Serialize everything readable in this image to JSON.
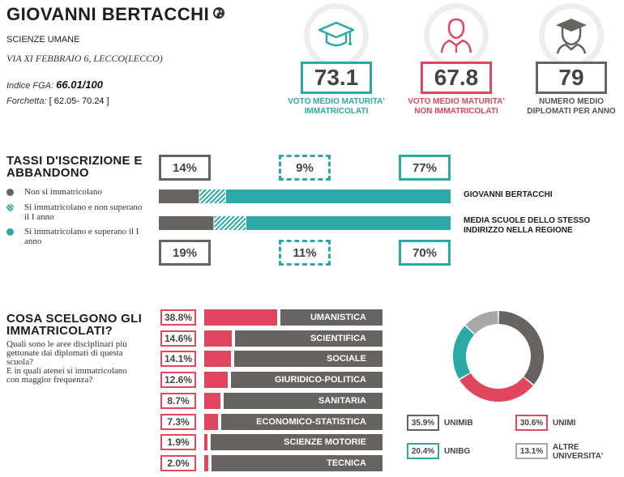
{
  "header": {
    "school_name": "GIOVANNI BERTACCHI",
    "globe_icon": "globe-icon",
    "school_type": "SCIENZE UMANE",
    "address": "VIA XI FEBBRAIO 6, LECCO(LECCO)",
    "fga_label": "Indice FGA:",
    "fga_value": "66.01/100",
    "range_label": "Forchetta:",
    "range_value": "[ 62.05- 70.24 ]"
  },
  "kpis": [
    {
      "value": "73.1",
      "label_line1": "VOTO MEDIO MATURITA'",
      "label_line2": "IMMATRICOLATI",
      "color": "#2ca8a6",
      "icon": "graduation-cap-icon"
    },
    {
      "value": "67.8",
      "label_line1": "VOTO MEDIO MATURITA'",
      "label_line2": "NON IMMATRICOLATI",
      "color": "#e0475e",
      "icon": "person-icon"
    },
    {
      "value": "79",
      "label_line1": "NUMERO MEDIO",
      "label_line2": "DIPLOMATI PER ANNO",
      "color": "#666360",
      "icon": "graduate-person-icon"
    }
  ],
  "enrollment": {
    "title_line1": "TASSI D'ISCRIZIONE E",
    "title_line2": "ABBANDONO",
    "legend": [
      {
        "label": "Non si immatricolano",
        "color": "#666360"
      },
      {
        "label": "Si immatricolano e non superano il I anno",
        "color": "#2ca8a6"
      },
      {
        "label": "Si immatricolano e superano il I anno",
        "color": "#2ca8a6"
      }
    ],
    "top_values": [
      "14%",
      "9%",
      "77%"
    ],
    "bottom_values": [
      "19%",
      "11%",
      "70%"
    ],
    "bar1_label": "GIOVANNI BERTACCHI",
    "bar2_label_line1": "MEDIA SCUOLE DELLO STESSO",
    "bar2_label_line2": "INDIRIZZO NELLA REGIONE"
  },
  "choices": {
    "title_line1": "COSA SCELGONO GLI",
    "title_line2": "IMMATRICOLATI?",
    "desc_line1": "Quali sono le aree disciplinari più",
    "desc_line2": "gettonate dai diplomati di questa",
    "desc_line3": "scuola?",
    "desc_line4": "E in quali atenei si immatricolano",
    "desc_line5": "con maggior frequenza?"
  },
  "chart_data": [
    {
      "type": "bar",
      "title": "TASSI D'ISCRIZIONE E ABBANDONO",
      "categories": [
        "GIOVANNI BERTACCHI",
        "MEDIA SCUOLE DELLO STESSO INDIRIZZO NELLA REGIONE"
      ],
      "series": [
        {
          "name": "Non si immatricolano",
          "values": [
            14,
            19
          ],
          "color": "#666360"
        },
        {
          "name": "Si immatricolano e non superano il I anno",
          "values": [
            9,
            11
          ],
          "color": "#2ca8a6"
        },
        {
          "name": "Si immatricolano e superano il I anno",
          "values": [
            77,
            70
          ],
          "color": "#2ca8a6"
        }
      ],
      "stacked": true,
      "orientation": "horizontal"
    },
    {
      "type": "bar",
      "title": "COSA SCELGONO GLI IMMATRICOLATI?",
      "orientation": "horizontal",
      "categories": [
        "UMANISTICA",
        "SCIENTIFICA",
        "SOCIALE",
        "GIURIDICO-POLITICA",
        "SANITARIA",
        "ECONOMICO-STATISTICA",
        "SCIENZE MOTORIE",
        "TECNICA"
      ],
      "values": [
        38.8,
        14.6,
        14.1,
        12.6,
        8.7,
        7.3,
        1.9,
        2.0
      ],
      "labels": [
        "38.8%",
        "14.6%",
        "14.1%",
        "12.6%",
        "8.7%",
        "7.3%",
        "1.9%",
        "2.0%"
      ],
      "color": "#e0475e",
      "ylim": [
        0,
        100
      ]
    },
    {
      "type": "pie",
      "donut": true,
      "categories": [
        "UNIMIB",
        "UNIMI",
        "UNIBG",
        "ALTRE UNIVERSITA'"
      ],
      "values": [
        35.9,
        30.6,
        20.4,
        13.1
      ],
      "labels": [
        "35.9%",
        "30.6%",
        "20.4%",
        "13.1%"
      ],
      "colors": [
        "#666360",
        "#e0475e",
        "#2ca8a6",
        "#a8a8a8"
      ]
    }
  ]
}
